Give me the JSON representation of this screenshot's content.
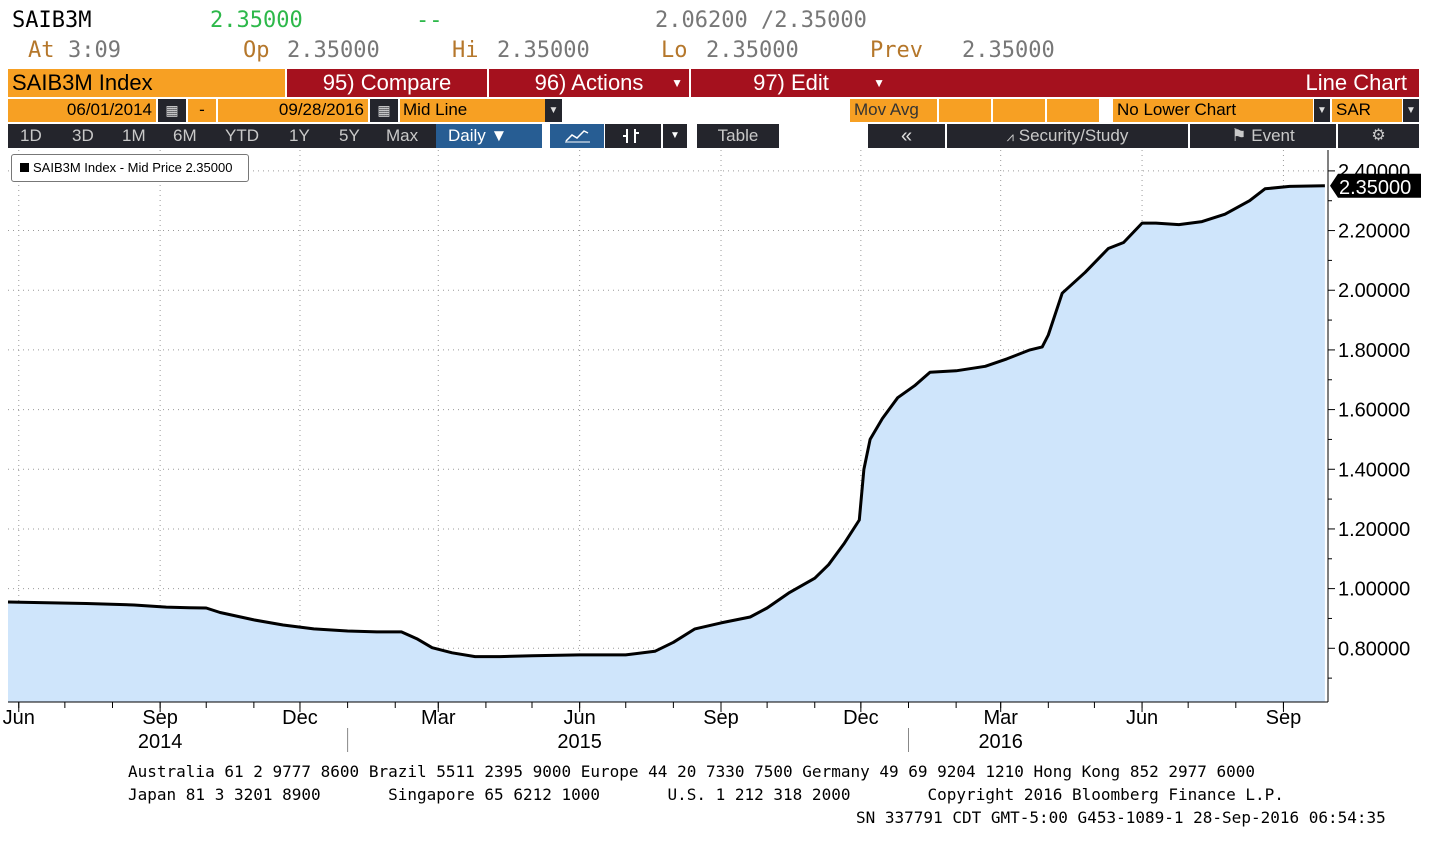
{
  "quote": {
    "ticker": "SAIB3M",
    "last": "2.35000",
    "change": "--",
    "bid_ask": "2.06200 /2.35000",
    "at_label": "At",
    "at_time": "3:09",
    "op_label": "Op",
    "op_value": "2.35000",
    "hi_label": "Hi",
    "hi_value": "2.35000",
    "lo_label": "Lo",
    "lo_value": "2.35000",
    "prev_label": "Prev",
    "prev_value": "2.35000"
  },
  "toolbar": {
    "security": "SAIB3M Index",
    "compare": "95) Compare",
    "actions": "96) Actions",
    "edit": "97) Edit",
    "chart_type": "Line Chart",
    "start_date": "06/01/2014",
    "dash": "-",
    "end_date": "09/28/2016",
    "price_type": "Mid Line",
    "mov_avg": "Mov Avg",
    "lower_chart": "No Lower Chart",
    "currency": "SAR",
    "ranges": [
      "1D",
      "3D",
      "1M",
      "6M",
      "YTD",
      "1Y",
      "5Y",
      "Max"
    ],
    "frequency": "Daily ▼",
    "table": "Table",
    "collapse": "«",
    "security_study": "Security/Study",
    "event": "Event",
    "settings_icon": "gear-icon"
  },
  "legend": {
    "text": "SAIB3M Index - Mid Price 2.35000"
  },
  "chart_data": {
    "type": "area",
    "title": "",
    "series_name": "SAIB3M Index - Mid Price",
    "line_color": "#000000",
    "fill_color": "#cfe5fb",
    "ylim": [
      0.62,
      2.47
    ],
    "yticks": [
      "2.40000",
      "2.20000",
      "2.00000",
      "1.80000",
      "1.60000",
      "1.40000",
      "1.20000",
      "1.00000",
      "0.80000"
    ],
    "last_value_label": "2.35000",
    "xlim": [
      "2014-05-25",
      "2016-09-30"
    ],
    "month_ticks": [
      {
        "label": "Jun",
        "date": "2014-06-01"
      },
      {
        "label": "Sep",
        "date": "2014-09-01"
      },
      {
        "label": "Dec",
        "date": "2014-12-01"
      },
      {
        "label": "Mar",
        "date": "2015-03-01"
      },
      {
        "label": "Jun",
        "date": "2015-06-01"
      },
      {
        "label": "Sep",
        "date": "2015-09-01"
      },
      {
        "label": "Dec",
        "date": "2015-12-01"
      },
      {
        "label": "Mar",
        "date": "2016-03-01"
      },
      {
        "label": "Jun",
        "date": "2016-06-01"
      },
      {
        "label": "Sep",
        "date": "2016-09-01"
      }
    ],
    "year_labels": [
      {
        "label": "2014",
        "date": "2014-09-01"
      },
      {
        "label": "2015",
        "date": "2015-06-01"
      },
      {
        "label": "2016",
        "date": "2016-03-01"
      }
    ],
    "year_separators": [
      "2015-01-01",
      "2016-01-01"
    ],
    "points": [
      [
        "2014-05-25",
        0.955
      ],
      [
        "2014-06-15",
        0.953
      ],
      [
        "2014-07-15",
        0.95
      ],
      [
        "2014-08-15",
        0.945
      ],
      [
        "2014-09-05",
        0.938
      ],
      [
        "2014-09-20",
        0.936
      ],
      [
        "2014-10-01",
        0.935
      ],
      [
        "2014-10-10",
        0.92
      ],
      [
        "2014-11-01",
        0.895
      ],
      [
        "2014-11-20",
        0.878
      ],
      [
        "2014-12-10",
        0.865
      ],
      [
        "2015-01-01",
        0.858
      ],
      [
        "2015-01-20",
        0.855
      ],
      [
        "2015-02-05",
        0.855
      ],
      [
        "2015-02-15",
        0.832
      ],
      [
        "2015-02-25",
        0.802
      ],
      [
        "2015-03-10",
        0.785
      ],
      [
        "2015-03-25",
        0.772
      ],
      [
        "2015-04-10",
        0.772
      ],
      [
        "2015-05-01",
        0.775
      ],
      [
        "2015-06-01",
        0.778
      ],
      [
        "2015-07-01",
        0.778
      ],
      [
        "2015-07-20",
        0.79
      ],
      [
        "2015-08-01",
        0.82
      ],
      [
        "2015-08-15",
        0.865
      ],
      [
        "2015-09-01",
        0.885
      ],
      [
        "2015-09-20",
        0.905
      ],
      [
        "2015-10-01",
        0.935
      ],
      [
        "2015-10-15",
        0.985
      ],
      [
        "2015-11-01",
        1.035
      ],
      [
        "2015-11-10",
        1.08
      ],
      [
        "2015-11-20",
        1.15
      ],
      [
        "2015-11-30",
        1.23
      ],
      [
        "2015-12-03",
        1.4
      ],
      [
        "2015-12-07",
        1.5
      ],
      [
        "2015-12-15",
        1.57
      ],
      [
        "2015-12-25",
        1.64
      ],
      [
        "2016-01-05",
        1.68
      ],
      [
        "2016-01-15",
        1.725
      ],
      [
        "2016-02-01",
        1.73
      ],
      [
        "2016-02-20",
        1.745
      ],
      [
        "2016-03-05",
        1.77
      ],
      [
        "2016-03-20",
        1.8
      ],
      [
        "2016-03-28",
        1.81
      ],
      [
        "2016-04-01",
        1.85
      ],
      [
        "2016-04-10",
        1.99
      ],
      [
        "2016-04-25",
        2.06
      ],
      [
        "2016-05-10",
        2.14
      ],
      [
        "2016-05-20",
        2.16
      ],
      [
        "2016-06-01",
        2.225
      ],
      [
        "2016-06-10",
        2.225
      ],
      [
        "2016-06-25",
        2.22
      ],
      [
        "2016-07-10",
        2.23
      ],
      [
        "2016-07-25",
        2.255
      ],
      [
        "2016-08-10",
        2.3
      ],
      [
        "2016-08-20",
        2.34
      ],
      [
        "2016-09-05",
        2.348
      ],
      [
        "2016-09-28",
        2.35
      ]
    ]
  },
  "footer": {
    "line1": "Australia 61 2 9777 8600 Brazil 5511 2395 9000 Europe 44 20 7330 7500 Germany 49 69 9204 1210 Hong Kong 852 2977 6000",
    "line2": "Japan 81 3 3201 8900       Singapore 65 6212 1000       U.S. 1 212 318 2000        Copyright 2016 Bloomberg Finance L.P.",
    "line3": "SN 337791 CDT  GMT-5:00 G453-1089-1 28-Sep-2016 06:54:35"
  }
}
